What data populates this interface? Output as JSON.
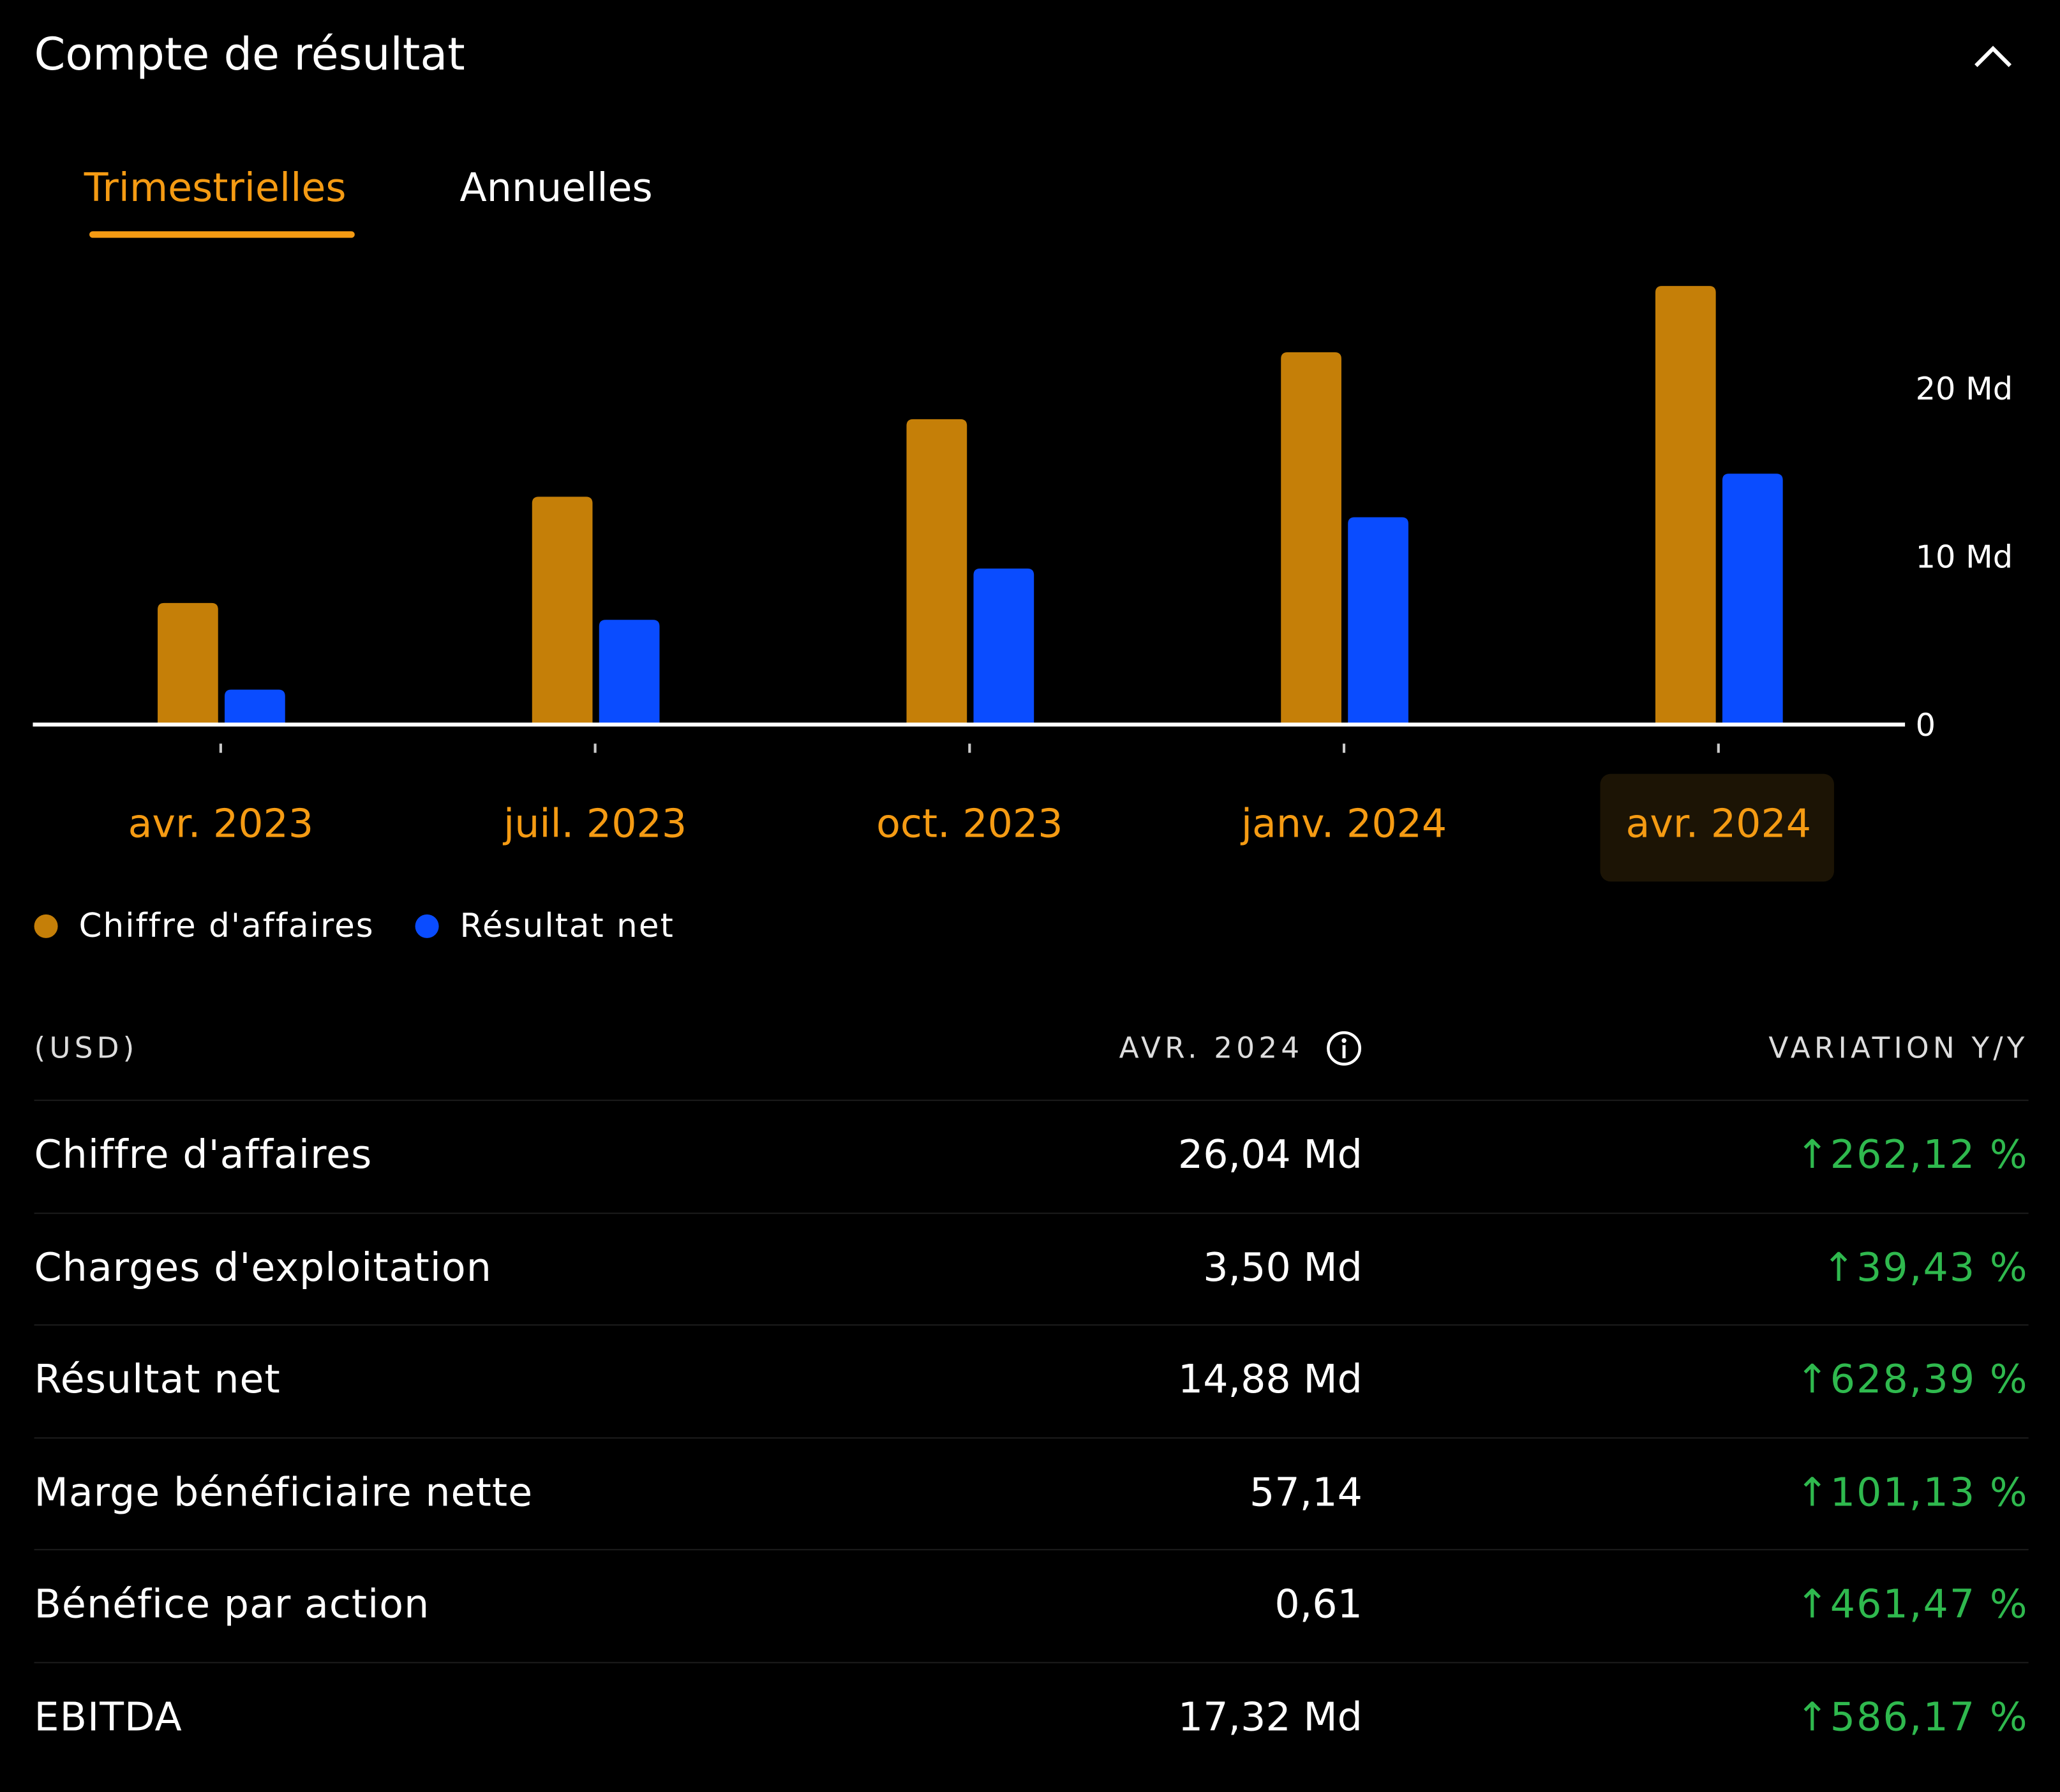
{
  "title": "Compte de résultat",
  "tabs": [
    {
      "label": "Trimestrielles",
      "active": true
    },
    {
      "label": "Annuelles",
      "active": false
    }
  ],
  "colors": {
    "accent": "#f59b13",
    "revenue": "#c57f08",
    "net_income": "#0a4cff",
    "positive": "#2fb94e"
  },
  "chart_data": {
    "type": "bar",
    "categories": [
      "avr. 2023",
      "juil. 2023",
      "oct. 2023",
      "janv. 2024",
      "avr. 2024"
    ],
    "selected_category": "avr. 2024",
    "series": [
      {
        "name": "Chiffre d'affaires",
        "values": [
          7.19,
          13.51,
          18.12,
          22.1,
          26.04
        ]
      },
      {
        "name": "Résultat net",
        "values": [
          2.04,
          6.19,
          9.24,
          12.29,
          14.88
        ]
      }
    ],
    "yticks": [
      {
        "value": 0,
        "label": "0"
      },
      {
        "value": 10,
        "label": "10 Md"
      },
      {
        "value": 20,
        "label": "20 Md"
      }
    ],
    "ylim": [
      0,
      27
    ],
    "legend": "bottom-left"
  },
  "table": {
    "currency": "(USD)",
    "period": "AVR. 2024",
    "change_header": "VARIATION Y/Y",
    "rows": [
      {
        "label": "Chiffre d'affaires",
        "value": "26,04 Md",
        "change": "262,12 %"
      },
      {
        "label": "Charges d'exploitation",
        "value": "3,50 Md",
        "change": "39,43 %"
      },
      {
        "label": "Résultat net",
        "value": "14,88 Md",
        "change": "628,39 %"
      },
      {
        "label": "Marge bénéficiaire nette",
        "value": "57,14",
        "change": "101,13 %"
      },
      {
        "label": "Bénéfice par action",
        "value": "0,61",
        "change": "461,47 %"
      },
      {
        "label": "EBITDA",
        "value": "17,32 Md",
        "change": "586,17 %"
      }
    ]
  }
}
